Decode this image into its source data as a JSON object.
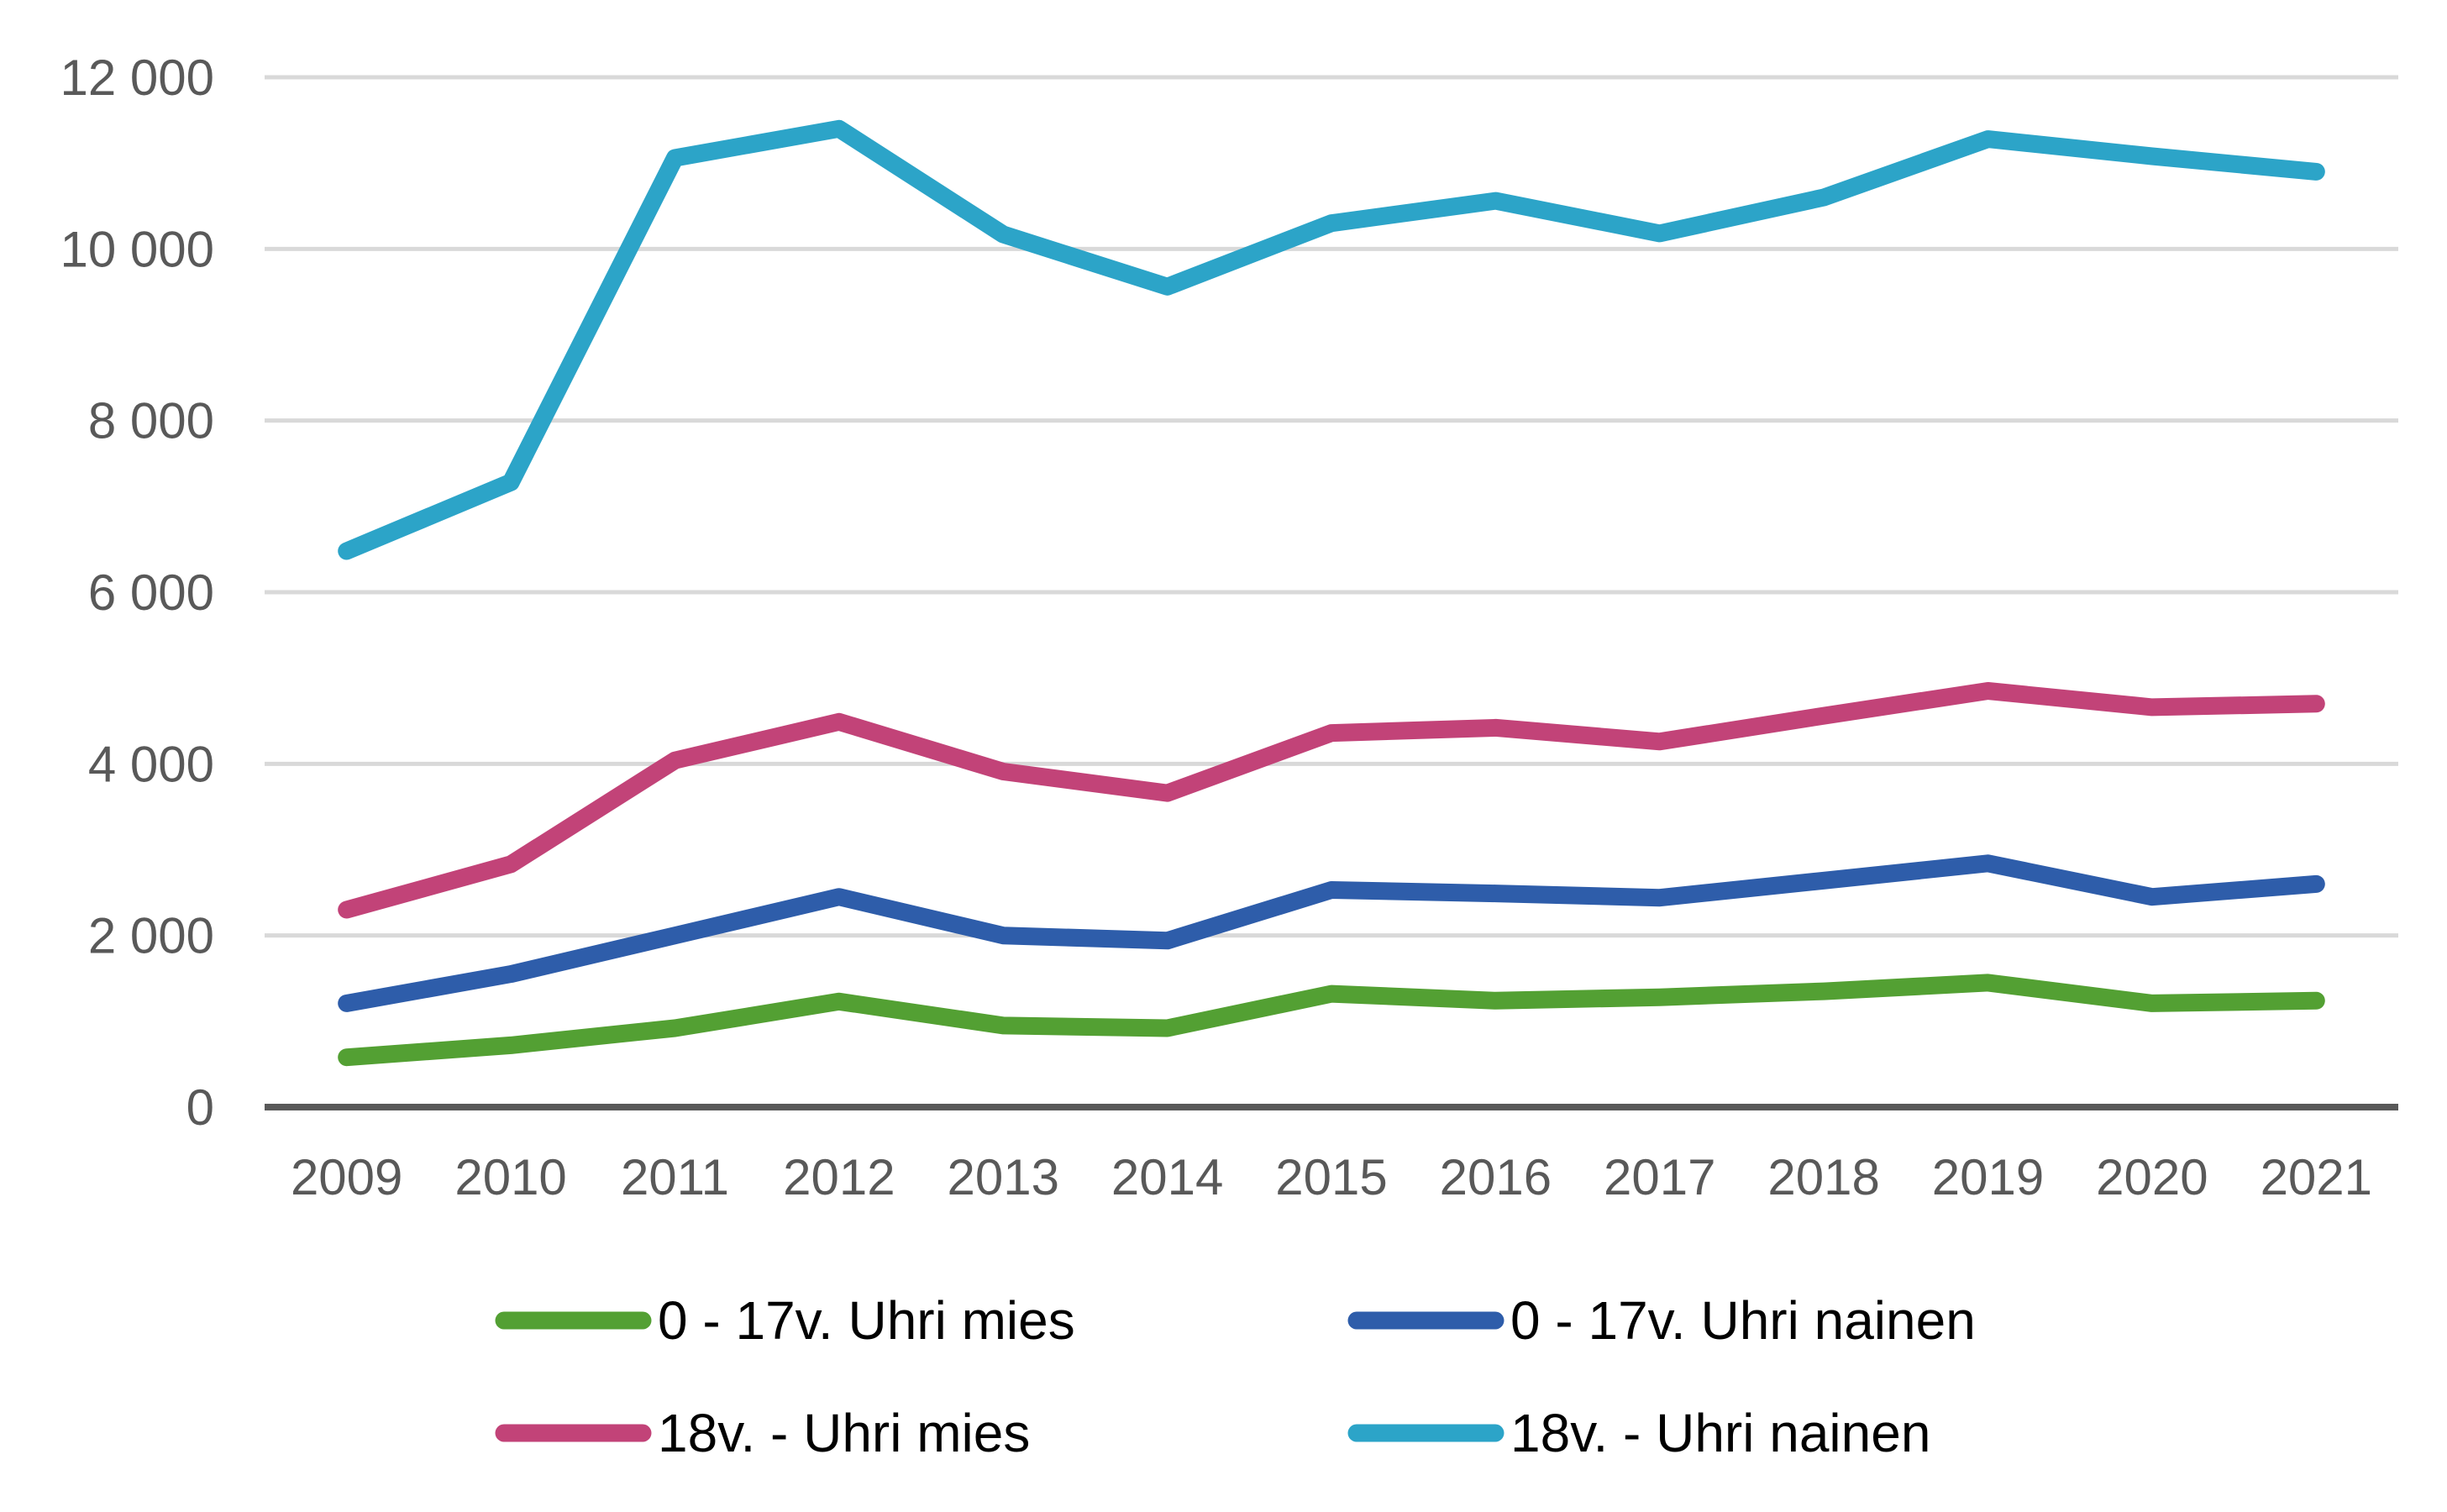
{
  "chart_data": {
    "type": "line",
    "title": "",
    "xlabel": "",
    "ylabel": "",
    "categories": [
      "2009",
      "2010",
      "2011",
      "2012",
      "2013",
      "2014",
      "2015",
      "2016",
      "2017",
      "2018",
      "2019",
      "2020",
      "2021"
    ],
    "ylim": [
      0,
      12000
    ],
    "yticks": [
      0,
      2000,
      4000,
      6000,
      8000,
      10000,
      12000
    ],
    "ytick_labels": [
      "0",
      "2 000",
      "4 000",
      "6 000",
      "8 000",
      "10 000",
      "12 000"
    ],
    "grid": true,
    "legend_position": "bottom",
    "series": [
      {
        "name": "0 - 17v. Uhri mies",
        "color": "#53A033",
        "values": [
          580,
          720,
          920,
          1230,
          950,
          920,
          1320,
          1240,
          1280,
          1350,
          1450,
          1210,
          1240
        ]
      },
      {
        "name": "0 - 17v. Uhri nainen",
        "color": "#2E5DAA",
        "values": [
          1210,
          1550,
          2000,
          2450,
          2000,
          1940,
          2530,
          2490,
          2440,
          2640,
          2840,
          2450,
          2600
        ]
      },
      {
        "name": "18v. - Uhri mies",
        "color": "#C24378",
        "values": [
          2300,
          2830,
          4040,
          4490,
          3910,
          3660,
          4360,
          4420,
          4260,
          4560,
          4850,
          4660,
          4700
        ]
      },
      {
        "name": "18v. - Uhri nainen",
        "color": "#2CA4C8",
        "values": [
          6480,
          7280,
          11060,
          11400,
          10170,
          9560,
          10300,
          10560,
          10180,
          10600,
          11280,
          11080,
          10900
        ]
      }
    ]
  }
}
